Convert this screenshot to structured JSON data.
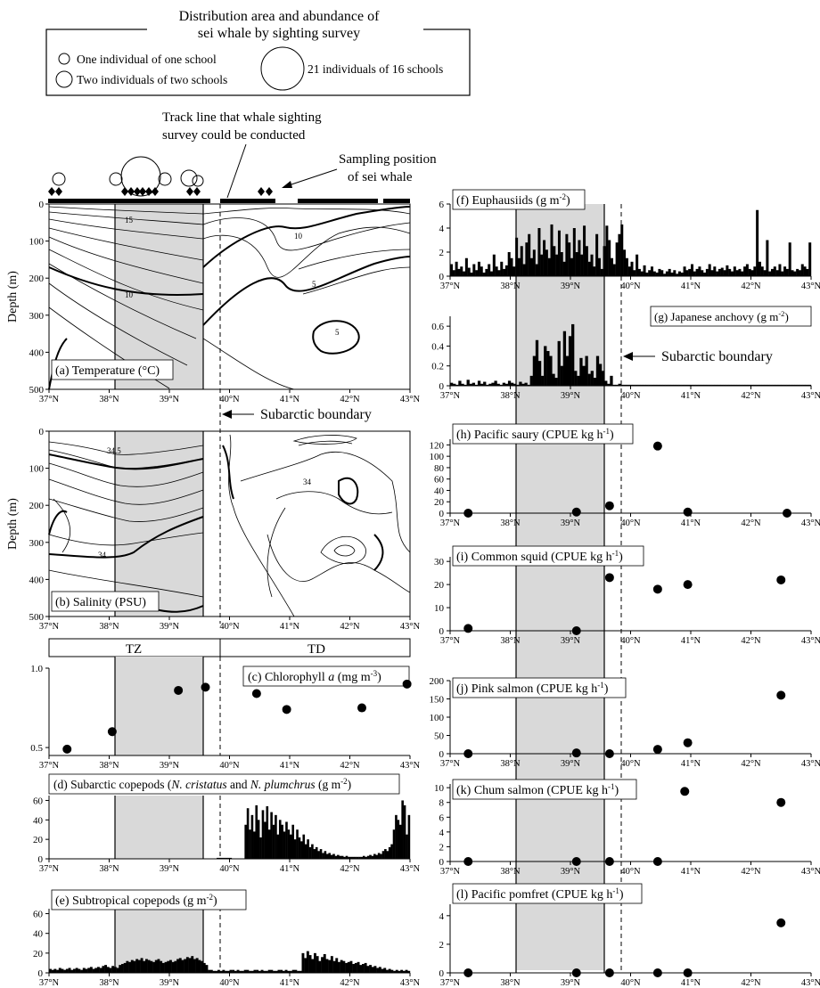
{
  "legend": {
    "title_line1": "Distribution area and abundance of",
    "title_line2": "sei whale by sighting survey",
    "item1": "One individual of one school",
    "item2": "Two individuals of two schools",
    "item3": "21 individuals of 16 schools"
  },
  "annotations": {
    "track_line_1": "Track line that whale sighting",
    "track_line_2": "survey could be conducted",
    "sampling_1": "Sampling position",
    "sampling_2": "of sei whale",
    "subarctic_boundary": "Subarctic boundary"
  },
  "zones": {
    "tz": "TZ",
    "td": "TD"
  },
  "axis_common": {
    "lat_ticks": [
      "37°N",
      "38°N",
      "39°N",
      "40°N",
      "41°N",
      "42°N",
      "43°N"
    ],
    "depth_label": "Depth (m)",
    "depth_ticks": [
      "0",
      "100",
      "200",
      "300",
      "400",
      "500"
    ]
  },
  "colors": {
    "shade": "#d9d9d9",
    "ink": "#000000"
  },
  "chart_data": [
    {
      "id": "a",
      "type": "heatmap",
      "title": "(a) Temperature (°C)",
      "ylabel": "Depth (m)",
      "xlim": [
        37,
        43
      ],
      "ylim": [
        500,
        0
      ],
      "contour_labels": [
        "15",
        "10",
        "10",
        "5",
        "5"
      ]
    },
    {
      "id": "b",
      "type": "heatmap",
      "title": "(b) Salinity (PSU)",
      "ylabel": "Depth (m)",
      "xlim": [
        37,
        43
      ],
      "ylim": [
        500,
        0
      ],
      "contour_labels": [
        "34.5",
        "34",
        "34"
      ]
    },
    {
      "id": "c",
      "type": "scatter",
      "title": "(c) Chlorophyll a (mg m-3)",
      "xlim": [
        37,
        43
      ],
      "ylim": [
        0.45,
        1.0
      ],
      "yticks": [
        "0.5",
        "1.0"
      ],
      "x": [
        37.3,
        38.05,
        39.15,
        39.6,
        40.45,
        40.95,
        42.2,
        42.95
      ],
      "y": [
        0.49,
        0.6,
        0.86,
        0.88,
        0.84,
        0.74,
        0.75,
        0.9
      ]
    },
    {
      "id": "d",
      "type": "bar",
      "title": "(d) Subarctic copepods (N. cristatus and N. plumchrus (g m-2)",
      "xlim": [
        37,
        43
      ],
      "ylim": [
        0,
        65
      ],
      "yticks": [
        "0",
        "20",
        "40",
        "60"
      ],
      "x_start": 37,
      "x_end": 43,
      "values": [
        0,
        0,
        0,
        0,
        0,
        0,
        0,
        0,
        0,
        0,
        0,
        0,
        0,
        0,
        0,
        0,
        0,
        0,
        0,
        0,
        0,
        0,
        0,
        0,
        0,
        0,
        0,
        0,
        0,
        0,
        0,
        0,
        0,
        0,
        0,
        0,
        0,
        0,
        0,
        0,
        0,
        0,
        0,
        0,
        0,
        0,
        0,
        0,
        0,
        0,
        0,
        0,
        0,
        0,
        0,
        0,
        0,
        0,
        0,
        0,
        0,
        0,
        0,
        0,
        0,
        0,
        0,
        0,
        0,
        0,
        0,
        0,
        0,
        0,
        0,
        0,
        0,
        0,
        1,
        1,
        1,
        1,
        1,
        1,
        1,
        0,
        0,
        0,
        0,
        0,
        0,
        35,
        52,
        30,
        45,
        28,
        55,
        40,
        22,
        50,
        38,
        54,
        30,
        48,
        35,
        45,
        25,
        40,
        35,
        28,
        38,
        30,
        25,
        35,
        20,
        30,
        22,
        18,
        25,
        15,
        20,
        12,
        15,
        10,
        12,
        8,
        10,
        6,
        8,
        5,
        6,
        4,
        5,
        3,
        4,
        3,
        3,
        2,
        3,
        2,
        2,
        2,
        2,
        2,
        2,
        2,
        3,
        2,
        3,
        4,
        3,
        5,
        4,
        6,
        5,
        8,
        10,
        8,
        12,
        15,
        30,
        45,
        40,
        35,
        60,
        55,
        25,
        45
      ]
    },
    {
      "id": "e",
      "type": "bar",
      "title": "(e) Subtropical copepods (g m-2)",
      "xlim": [
        37,
        43
      ],
      "ylim": [
        0,
        65
      ],
      "yticks": [
        "0",
        "20",
        "40",
        "60"
      ],
      "x_start": 37,
      "x_end": 43,
      "values": [
        4,
        3,
        4,
        3,
        5,
        4,
        3,
        4,
        5,
        3,
        4,
        5,
        4,
        3,
        5,
        4,
        5,
        6,
        4,
        5,
        6,
        5,
        7,
        8,
        6,
        5,
        7,
        6,
        5,
        8,
        9,
        10,
        12,
        11,
        13,
        12,
        14,
        13,
        15,
        12,
        14,
        13,
        12,
        11,
        13,
        14,
        12,
        10,
        11,
        12,
        13,
        11,
        12,
        14,
        15,
        13,
        14,
        16,
        15,
        17,
        14,
        15,
        13,
        12,
        10,
        8,
        3,
        3,
        2,
        2,
        3,
        2,
        3,
        2,
        2,
        3,
        3,
        2,
        3,
        2,
        2,
        3,
        3,
        2,
        2,
        3,
        3,
        2,
        3,
        2,
        2,
        3,
        3,
        2,
        2,
        3,
        3,
        2,
        3,
        2,
        2,
        3,
        3,
        2,
        2,
        20,
        15,
        22,
        18,
        14,
        20,
        17,
        12,
        16,
        19,
        14,
        13,
        17,
        12,
        15,
        11,
        13,
        12,
        10,
        11,
        12,
        9,
        10,
        11,
        8,
        9,
        10,
        7,
        8,
        6,
        7,
        5,
        6,
        4,
        5,
        3,
        4,
        3,
        2,
        3,
        2,
        3,
        2,
        3,
        2
      ]
    },
    {
      "id": "f",
      "type": "bar",
      "title": "(f) Euphausiids (g m-2)",
      "xlim": [
        37,
        43
      ],
      "ylim": [
        0,
        6
      ],
      "yticks": [
        "0",
        "2",
        "4",
        "6"
      ],
      "x_start": 37,
      "x_end": 43,
      "values": [
        1.0,
        0.5,
        1.2,
        0.6,
        0.8,
        0.4,
        1.5,
        0.7,
        0.3,
        1.0,
        0.5,
        1.2,
        0.8,
        0.3,
        0.6,
        1.0,
        0.4,
        1.8,
        0.8,
        0.5,
        1.2,
        0.6,
        0.9,
        2.0,
        1.5,
        0.8,
        3.2,
        1.5,
        2.5,
        1.0,
        2.8,
        3.5,
        1.5,
        2.2,
        1.0,
        4.0,
        1.8,
        3.0,
        2.2,
        1.5,
        4.3,
        2.5,
        1.8,
        3.8,
        2.0,
        1.2,
        3.5,
        2.8,
        1.5,
        4.0,
        2.0,
        3.0,
        1.8,
        4.2,
        2.5,
        1.2,
        1.8,
        0.8,
        3.5,
        1.5,
        0.6,
        2.5,
        4.2,
        3.0,
        1.5,
        1.0,
        2.8,
        3.5,
        4.3,
        2.2,
        1.5,
        0.8,
        1.2,
        0.5,
        1.8,
        0.6,
        0.4,
        0.9,
        0.3,
        0.5,
        0.8,
        0.4,
        0.3,
        0.6,
        0.5,
        0.2,
        0.4,
        0.6,
        0.3,
        0.5,
        0.2,
        0.4,
        0.3,
        0.8,
        0.5,
        0.6,
        1.0,
        0.4,
        0.6,
        0.8,
        0.5,
        0.3,
        0.6,
        1.0,
        0.5,
        0.8,
        0.4,
        0.6,
        0.7,
        0.5,
        0.9,
        0.6,
        0.4,
        0.8,
        0.5,
        0.6,
        0.4,
        0.8,
        1.0,
        0.6,
        0.5,
        0.8,
        5.5,
        1.2,
        0.8,
        0.5,
        3.0,
        0.4,
        0.6,
        0.8,
        0.5,
        1.0,
        0.4,
        0.8,
        0.6,
        2.8,
        0.5,
        0.4,
        0.6,
        0.5,
        1.0,
        0.8,
        0.6,
        2.8
      ]
    },
    {
      "id": "g",
      "type": "bar",
      "title": "(g) Japanese anchovy (g m-2)",
      "xlim": [
        37,
        43
      ],
      "ylim": [
        0,
        0.7
      ],
      "yticks": [
        "0",
        "0.2",
        "0.4",
        "0.6"
      ],
      "x_start": 37,
      "x_end": 43,
      "values": [
        0.03,
        0.02,
        0.01,
        0.05,
        0.02,
        0.01,
        0.06,
        0.02,
        0.03,
        0.01,
        0.05,
        0.02,
        0.04,
        0.01,
        0.02,
        0.03,
        0.05,
        0.02,
        0.01,
        0.03,
        0.02,
        0.05,
        0.03,
        0.02,
        0.01,
        0.04,
        0.02,
        0.03,
        0.01,
        0.1,
        0.3,
        0.46,
        0.25,
        0.1,
        0.4,
        0.35,
        0.3,
        0.12,
        0.08,
        0.45,
        0.2,
        0.55,
        0.3,
        0.5,
        0.62,
        0.15,
        0.1,
        0.28,
        0.2,
        0.3,
        0.12,
        0.15,
        0.08,
        0.3,
        0.22,
        0.15,
        0.05,
        0.02,
        0.1,
        0.01,
        0.01,
        0.02,
        0.01,
        0.01,
        0.01,
        0.01,
        0.01,
        0.01,
        0.01,
        0.01,
        0.01,
        0.01,
        0.01,
        0.01,
        0.01,
        0.01,
        0.01,
        0.01,
        0.01,
        0.01,
        0.01,
        0.01,
        0.01,
        0.01,
        0.01,
        0.01,
        0.01,
        0.01,
        0.01,
        0.01,
        0.01,
        0.01,
        0.01,
        0.01,
        0.01,
        0.01,
        0.01,
        0.01,
        0.01,
        0.01,
        0.01,
        0.01,
        0.01,
        0.01,
        0.01,
        0.01,
        0.01,
        0.01,
        0.01,
        0.01,
        0.01,
        0.01,
        0.01,
        0.01,
        0.01,
        0.01,
        0.01,
        0.01,
        0.01,
        0.01,
        0.01,
        0.01,
        0.01,
        0.01,
        0.01,
        0.01,
        0.01,
        0.01,
        0.01,
        0.01,
        0.01
      ]
    },
    {
      "id": "h",
      "type": "scatter",
      "title": "(h) Pacific saury (CPUE kg h-1)",
      "xlim": [
        37,
        43
      ],
      "ylim": [
        0,
        130
      ],
      "yticks": [
        "0",
        "20",
        "40",
        "60",
        "80",
        "100",
        "120"
      ],
      "x": [
        37.3,
        39.1,
        39.65,
        40.45,
        40.95,
        42.6
      ],
      "y": [
        0,
        2,
        13,
        118,
        2,
        0
      ]
    },
    {
      "id": "i",
      "type": "scatter",
      "title": "(i) Common squid (CPUE kg h-1)",
      "xlim": [
        37,
        43
      ],
      "ylim": [
        0,
        32
      ],
      "yticks": [
        "0",
        "10",
        "20",
        "30"
      ],
      "x": [
        37.3,
        39.1,
        39.65,
        40.45,
        40.95,
        42.5
      ],
      "y": [
        1,
        0,
        23,
        18,
        20,
        22
      ]
    },
    {
      "id": "j",
      "type": "scatter",
      "title": "(j) Pink salmon (CPUE kg h-1)",
      "xlim": [
        37,
        43
      ],
      "ylim": [
        0,
        200
      ],
      "yticks": [
        "0",
        "50",
        "100",
        "150",
        "200"
      ],
      "x": [
        37.3,
        39.1,
        39.65,
        40.45,
        40.95,
        42.5
      ],
      "y": [
        0,
        2,
        0,
        12,
        30,
        160
      ]
    },
    {
      "id": "k",
      "type": "scatter",
      "title": "(k) Chum salmon (CPUE kg h-1)",
      "xlim": [
        37,
        43
      ],
      "ylim": [
        0,
        10.5
      ],
      "yticks": [
        "0",
        "2",
        "4",
        "6",
        "8",
        "10"
      ],
      "x": [
        37.3,
        39.1,
        39.65,
        40.45,
        40.9,
        42.5
      ],
      "y": [
        0,
        0,
        0,
        0,
        9.5,
        8
      ]
    },
    {
      "id": "l",
      "type": "scatter",
      "title": "(l) Pacific pomfret (CPUE kg h-1)",
      "xlim": [
        37,
        43
      ],
      "ylim": [
        0,
        4.8
      ],
      "yticks": [
        "0",
        "2",
        "4"
      ],
      "x": [
        37.3,
        39.1,
        39.65,
        40.45,
        40.95,
        42.5
      ],
      "y": [
        0,
        0,
        0,
        0,
        0,
        3.5
      ]
    }
  ]
}
